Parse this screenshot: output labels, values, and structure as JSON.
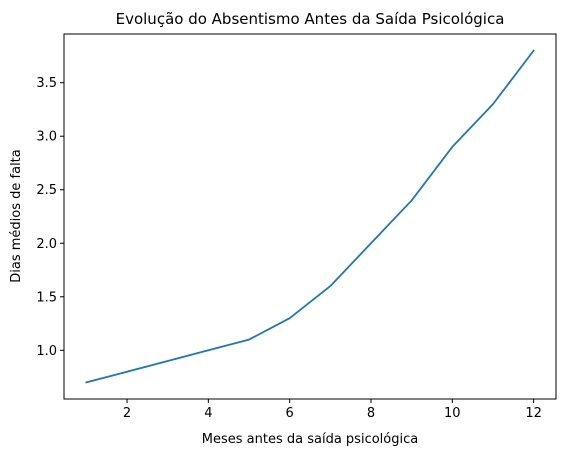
{
  "chart_data": {
    "type": "line",
    "title": "Evolução do Absentismo Antes da Saída Psicológica",
    "xlabel": "Meses antes da saída psicológica",
    "ylabel": "Dias médios de falta",
    "xlim": [
      0.45,
      12.55
    ],
    "ylim": [
      0.545,
      3.955
    ],
    "xticks": [
      2,
      4,
      6,
      8,
      10,
      12
    ],
    "xtick_labels": [
      "2",
      "4",
      "6",
      "8",
      "10",
      "12"
    ],
    "yticks": [
      1.0,
      1.5,
      2.0,
      2.5,
      3.0,
      3.5
    ],
    "ytick_labels": [
      "1.0",
      "1.5",
      "2.0",
      "2.5",
      "3.0",
      "3.5"
    ],
    "grid": false,
    "series": [
      {
        "color": "#1f77b4",
        "x": [
          1,
          2,
          3,
          4,
          5,
          6,
          7,
          8,
          9,
          10,
          11,
          12
        ],
        "y": [
          0.7,
          0.8,
          0.9,
          1.0,
          1.1,
          1.3,
          1.6,
          2.0,
          2.4,
          2.9,
          3.3,
          3.8
        ]
      }
    ]
  }
}
